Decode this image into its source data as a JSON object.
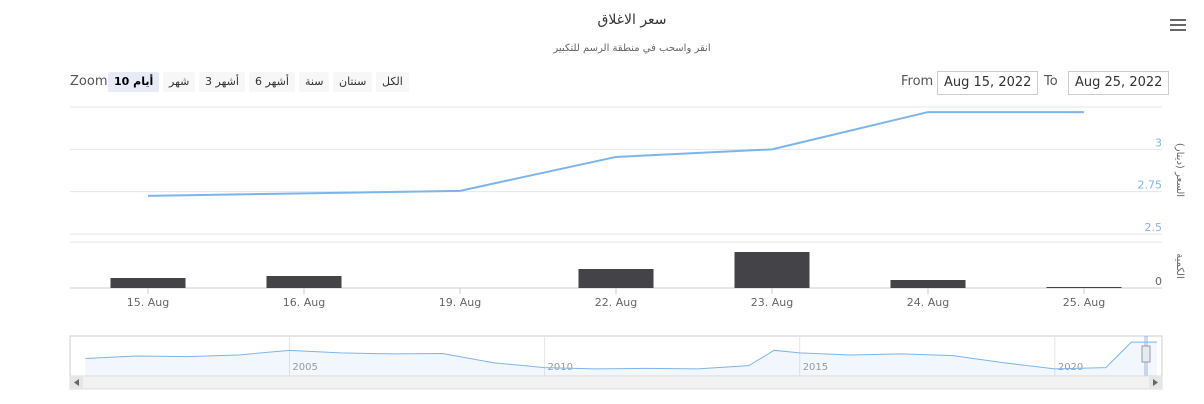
{
  "header": {
    "title": "سعر الاغلاق",
    "subtitle": "انقر واسحب في منطقة الرسم للتكبير"
  },
  "range_selector": {
    "zoom_label": "Zoom",
    "buttons": [
      "10 أيام",
      "شهر",
      "3 أشهر",
      "6 أشهر",
      "سنة",
      "سنتان",
      "الكل"
    ],
    "selected": 0,
    "from_label": "From",
    "from": "Aug 15, 2022",
    "to_label": "To",
    "to": "Aug 25, 2022"
  },
  "chart_data": [
    {
      "type": "line",
      "categories": [
        "15. Aug",
        "16. Aug",
        "19. Aug",
        "22. Aug",
        "23. Aug",
        "24. Aug",
        "25. Aug"
      ],
      "series": [
        {
          "color": "#7cb5ec",
          "values": [
            2.725,
            2.74,
            2.755,
            2.955,
            3.0,
            3.22,
            3.22
          ]
        }
      ],
      "y_label": "السعر (دينار)",
      "ylim": [
        2.5,
        3.25
      ],
      "yticks": [
        2.5,
        2.75,
        3
      ],
      "grid": true
    },
    {
      "type": "bar",
      "color": "#434348",
      "values": [
        10,
        12,
        0,
        19,
        36,
        8,
        1
      ],
      "y_label": "الكمية",
      "ylim": [
        0,
        46
      ],
      "yticks": [
        0
      ]
    },
    {
      "type": "area",
      "color": "#7cb5ec",
      "x": [
        2001,
        2002,
        2003,
        2004,
        2005,
        2006,
        2007,
        2008,
        2009,
        2010,
        2011,
        2012,
        2013,
        2014,
        2014.5,
        2015,
        2016,
        2017,
        2018,
        2019,
        2020,
        2021,
        2021.5,
        2022
      ],
      "values": [
        2.33,
        2.45,
        2.42,
        2.5,
        2.72,
        2.6,
        2.55,
        2.57,
        2.13,
        1.9,
        1.84,
        1.86,
        1.84,
        1.99,
        2.72,
        2.6,
        2.5,
        2.55,
        2.47,
        2.13,
        1.84,
        1.9,
        3.11,
        3.11
      ],
      "xlim": [
        2000.7,
        2022.1
      ],
      "xticks": [
        2005,
        2010,
        2015,
        2020
      ],
      "ylim": [
        1.5,
        3.4
      ]
    }
  ]
}
